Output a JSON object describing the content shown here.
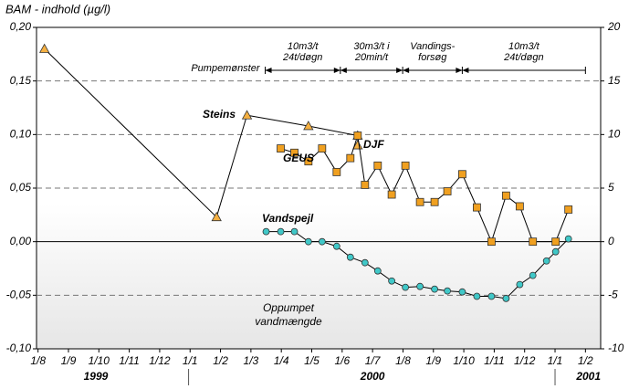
{
  "chart_data": {
    "type": "line",
    "title": "BAM - indhold (µg/l)",
    "xlim": [
      -0.05,
      18.5
    ],
    "xticks": [
      {
        "value": 0,
        "label": "1/8"
      },
      {
        "value": 1,
        "label": "1/9"
      },
      {
        "value": 2,
        "label": "1/10"
      },
      {
        "value": 3,
        "label": "1/11"
      },
      {
        "value": 4,
        "label": "1/12"
      },
      {
        "value": 5,
        "label": "1/1"
      },
      {
        "value": 6,
        "label": "1/2"
      },
      {
        "value": 7,
        "label": "1/3"
      },
      {
        "value": 8,
        "label": "1/4"
      },
      {
        "value": 9,
        "label": "1/5"
      },
      {
        "value": 10,
        "label": "1/6"
      },
      {
        "value": 11,
        "label": "1/7"
      },
      {
        "value": 12,
        "label": "1/8"
      },
      {
        "value": 13,
        "label": "1/9"
      },
      {
        "value": 14,
        "label": "1/10"
      },
      {
        "value": 15,
        "label": "1/11"
      },
      {
        "value": 16,
        "label": "1/12"
      },
      {
        "value": 17,
        "label": "1/1"
      },
      {
        "value": 18,
        "label": "1/2"
      }
    ],
    "years": [
      {
        "value": 1.9,
        "label": "1999"
      },
      {
        "value": 11.0,
        "label": "2000"
      },
      {
        "value": 18.1,
        "label": "2001"
      }
    ],
    "year_bounds": [
      4.95,
      17.0
    ],
    "ylim": [
      -0.1,
      0.2
    ],
    "yticks": [
      {
        "value": -0.1,
        "label": "-0,10"
      },
      {
        "value": -0.05,
        "label": "-0,05"
      },
      {
        "value": 0,
        "label": "0,00"
      },
      {
        "value": 0.05,
        "label": "0,05"
      },
      {
        "value": 0.1,
        "label": "0,10"
      },
      {
        "value": 0.15,
        "label": "0,15"
      },
      {
        "value": 0.2,
        "label": "0,20"
      }
    ],
    "y2lim": [
      -10,
      20
    ],
    "y2ticks": [
      -10,
      -5,
      0,
      5,
      10,
      15,
      20
    ],
    "grid": true,
    "series": [
      {
        "name": "Steins",
        "marker": "triangle",
        "color": "#f5b041",
        "x": [
          0.21,
          5.87,
          6.87,
          8.89,
          10.51,
          10.51
        ],
        "values": [
          0.18,
          0.023,
          0.118,
          0.108,
          0.099,
          0.09
        ]
      },
      {
        "name": "GEUS",
        "marker": "square",
        "color": "#f0a020",
        "x": [
          7.98,
          8.43,
          8.89,
          9.34,
          9.82,
          10.27,
          10.51,
          10.75,
          11.17,
          11.63,
          12.08,
          12.56,
          13.04,
          13.46,
          13.95,
          14.43,
          14.91,
          15.39,
          15.84,
          16.27,
          17.02,
          17.44
        ],
        "values": [
          0.087,
          0.083,
          0.075,
          0.087,
          0.065,
          0.078,
          0.099,
          0.053,
          0.071,
          0.044,
          0.071,
          0.037,
          0.037,
          0.047,
          0.063,
          0.032,
          0.0,
          0.043,
          0.033,
          0.0,
          0.0,
          0.03
        ]
      },
      {
        "name": "Vandspejl",
        "marker": "circle",
        "color": "#40c8c8",
        "axis": "y2",
        "x": [
          7.5,
          7.98,
          8.43,
          8.89,
          9.34,
          9.82,
          10.27,
          10.75,
          11.17,
          11.63,
          12.08,
          12.56,
          13.04,
          13.46,
          13.95,
          14.43,
          14.91,
          15.39,
          15.84,
          16.27,
          16.72,
          17.02,
          17.44
        ],
        "values": [
          0.94,
          0.94,
          0.94,
          0,
          0,
          -0.43,
          -1.45,
          -1.96,
          -2.73,
          -3.67,
          -4.26,
          -4.18,
          -4.43,
          -4.6,
          -4.69,
          -5.1,
          -5.1,
          -5.3,
          -4.0,
          -3.15,
          -1.8,
          -0.94,
          0.26
        ]
      }
    ],
    "annotations": {
      "djf": "DJF",
      "pump_label": "Pumpemønster",
      "pumped": [
        "Oppumpet",
        "vandmængde"
      ]
    },
    "period_bounds": [
      7.47,
      9.94,
      11.99,
      13.95,
      18.0
    ],
    "periods": [
      [
        "10m3/t",
        "24t/døgn"
      ],
      [
        "30m3/t i",
        "20min/t"
      ],
      [
        "Vandings-",
        "forsøg"
      ],
      [
        "10m3/t",
        "24t/døgn"
      ]
    ]
  }
}
